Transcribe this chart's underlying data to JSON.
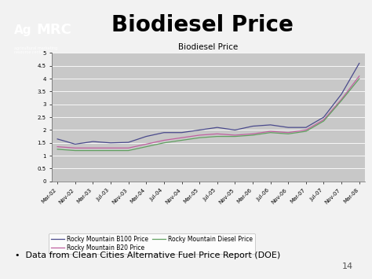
{
  "title_main": "Biodiesel Price",
  "chart_title": "Biodiesel Price",
  "slide_bg_color": "#f2f2f2",
  "plot_bg_color": "#c8c8c8",
  "chart_border_color": "#888888",
  "tick_labels": [
    "Mar-02",
    "Nov-02",
    "Mar-03",
    "Jul-03",
    "Nov-03",
    "Mar-04",
    "Jul-04",
    "Nov-04",
    "Mar-05",
    "Jul-05",
    "Nov-05",
    "Mar-06",
    "Jul-06",
    "Nov-06",
    "Mar-07",
    "Jul-07",
    "Nov-07",
    "Mar-08"
  ],
  "ylim": [
    0,
    5
  ],
  "yticks": [
    0,
    0.5,
    1.0,
    1.5,
    2.0,
    2.5,
    3.0,
    3.5,
    4.0,
    4.5,
    5.0
  ],
  "ytick_labels": [
    "0",
    "0.5",
    "1",
    "1.5",
    "2",
    "2.5",
    "3",
    "3.5",
    "4",
    "4.5",
    "5"
  ],
  "b100_color": "#4a4a8c",
  "b20_color": "#c060a0",
  "diesel_color": "#60a060",
  "b100_values": [
    1.65,
    1.45,
    1.55,
    1.5,
    1.52,
    1.75,
    1.9,
    1.9,
    2.0,
    2.1,
    2.0,
    2.15,
    2.2,
    2.1,
    2.1,
    2.5,
    3.4,
    4.6
  ],
  "b20_values": [
    1.35,
    1.3,
    1.3,
    1.3,
    1.3,
    1.45,
    1.6,
    1.7,
    1.8,
    1.85,
    1.8,
    1.85,
    1.95,
    1.9,
    2.0,
    2.4,
    3.2,
    4.1
  ],
  "diesel_values": [
    1.25,
    1.2,
    1.2,
    1.2,
    1.2,
    1.35,
    1.5,
    1.6,
    1.7,
    1.75,
    1.75,
    1.8,
    1.9,
    1.85,
    1.95,
    2.35,
    3.15,
    4.0
  ],
  "legend_labels": [
    "Rocky Mountain B100 Price",
    "Rocky Mountain B20 Price",
    "Rocky Mountain Diesel Price"
  ],
  "footnote": "Data from Clean Cities Alternative Fuel Price Report (DOE)",
  "page_number": "14",
  "title_fontsize": 20,
  "chart_title_fontsize": 7.5,
  "tick_fontsize": 5,
  "legend_fontsize": 5.5,
  "footnote_fontsize": 8,
  "page_fontsize": 8
}
